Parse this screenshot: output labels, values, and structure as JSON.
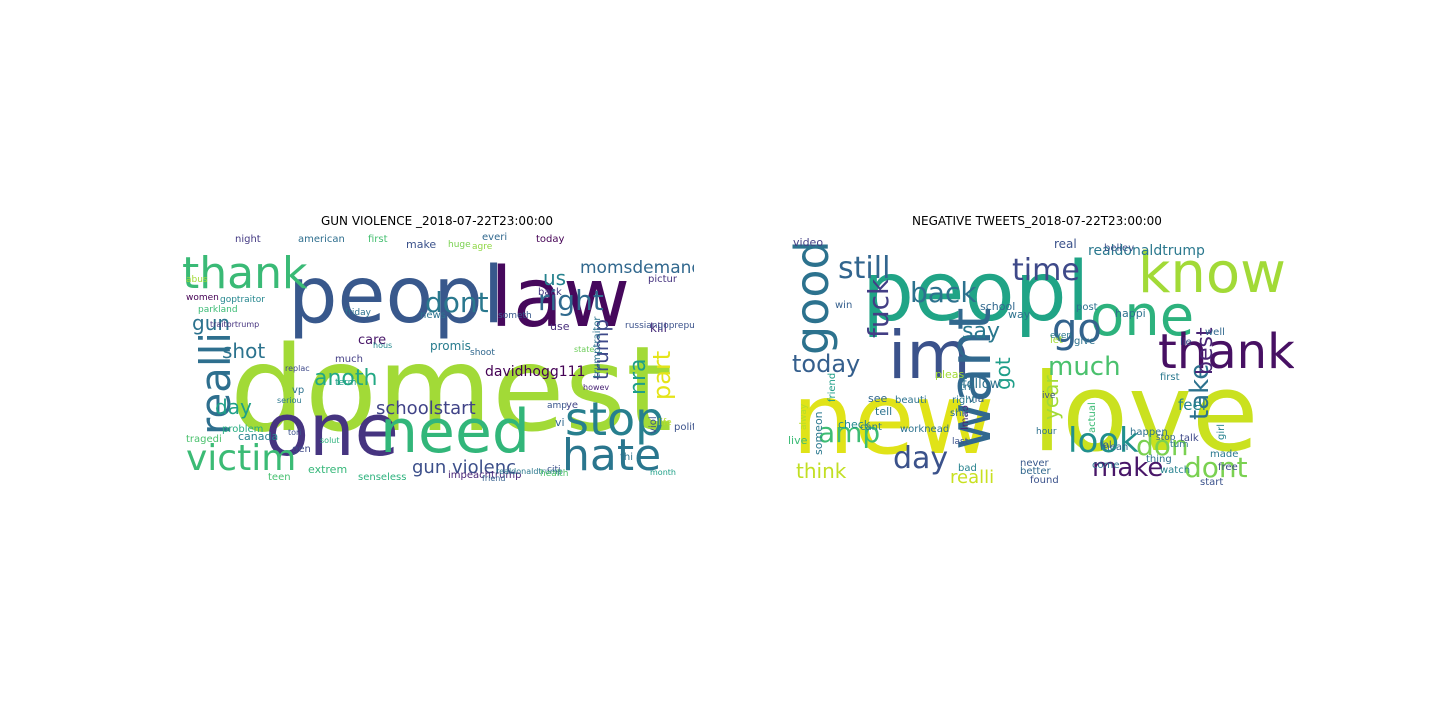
{
  "left_panel": {
    "title": "GUN VIOLENCE _2018-07-22T23:00:00",
    "words": [
      {
        "text": "domest",
        "color": "#a2da37"
      },
      {
        "text": "peopl",
        "color": "#38588c"
      },
      {
        "text": "law",
        "color": "#46085c"
      },
      {
        "text": "thank",
        "color": "#3aba76"
      },
      {
        "text": "one",
        "color": "#463480"
      },
      {
        "text": "need",
        "color": "#32b67a"
      },
      {
        "text": "victim",
        "color": "#3bbb75"
      },
      {
        "text": "realli",
        "color": "#2e6f8e"
      },
      {
        "text": "hate",
        "color": "#2a768e"
      },
      {
        "text": "stop",
        "color": "#277f8e"
      },
      {
        "text": "dont",
        "color": "#2a788e"
      },
      {
        "text": "right",
        "color": "#306a8e"
      },
      {
        "text": "gun violenc",
        "color": "#3c4f8a"
      },
      {
        "text": "schoolstart",
        "color": "#404387"
      },
      {
        "text": "anoth",
        "color": "#22a884"
      },
      {
        "text": "momsdemand",
        "color": "#31688e"
      },
      {
        "text": "davidhogg111",
        "color": "#440154"
      },
      {
        "text": "trump",
        "color": "#3e4989"
      },
      {
        "text": "nra",
        "color": "#1f9e89"
      },
      {
        "text": "us",
        "color": "#26828e"
      },
      {
        "text": "gun",
        "color": "#2c728e"
      },
      {
        "text": "shot",
        "color": "#2c738e"
      },
      {
        "text": "day",
        "color": "#1fa088"
      },
      {
        "text": "part",
        "color": "#e5e419"
      },
      {
        "text": "kill",
        "color": "#472c7a"
      },
      {
        "text": "care",
        "color": "#481769"
      },
      {
        "text": "promis",
        "color": "#287c8e"
      },
      {
        "text": "tragedi",
        "color": "#4ac16d"
      },
      {
        "text": "canada",
        "color": "#26828e"
      },
      {
        "text": "extrem",
        "color": "#35b779"
      },
      {
        "text": "teen",
        "color": "#46c06f"
      },
      {
        "text": "senseless",
        "color": "#2db27d"
      },
      {
        "text": "impeachtrump",
        "color": "#482576"
      },
      {
        "text": "friend",
        "color": "#355f8d"
      },
      {
        "text": "night",
        "color": "#443a83"
      },
      {
        "text": "american",
        "color": "#2e6e8e"
      },
      {
        "text": "first",
        "color": "#44bf70"
      },
      {
        "text": "make",
        "color": "#3b528b"
      },
      {
        "text": "huge",
        "color": "#7ad151"
      },
      {
        "text": "agre",
        "color": "#8fd744"
      },
      {
        "text": "everi",
        "color": "#31688e"
      },
      {
        "text": "use",
        "color": "#472d7b"
      },
      {
        "text": "goptraitor",
        "color": "#24868e"
      },
      {
        "text": "parkland",
        "color": "#3bbb75"
      },
      {
        "text": "traitortrump",
        "color": "#46337f"
      },
      {
        "text": "problem",
        "color": "#27ad81"
      },
      {
        "text": "much",
        "color": "#433e85"
      },
      {
        "text": "term",
        "color": "#1f9f88"
      },
      {
        "text": "vp",
        "color": "#2c718e"
      },
      {
        "text": "hous",
        "color": "#23898e"
      },
      {
        "text": "replac",
        "color": "#3e4989"
      },
      {
        "text": "tori",
        "color": "#3b528b"
      },
      {
        "text": "solut",
        "color": "#2db27d"
      },
      {
        "text": "friday",
        "color": "#2c718e"
      },
      {
        "text": "today",
        "color": "#440154"
      },
      {
        "text": "back",
        "color": "#443a83"
      },
      {
        "text": "amp",
        "color": "#39558c"
      },
      {
        "text": "life",
        "color": "#b5de2b"
      },
      {
        "text": "month",
        "color": "#1fa088"
      },
      {
        "text": "citi",
        "color": "#3b528b"
      },
      {
        "text": "thi",
        "color": "#2c728e"
      },
      {
        "text": "realdonaldtrump",
        "color": "#2a788e"
      },
      {
        "text": "health",
        "color": "#4ec36b"
      },
      {
        "text": "viol",
        "color": "#3b528b"
      },
      {
        "text": "vi",
        "color": "#31688e"
      },
      {
        "text": "ye",
        "color": "#414487"
      },
      {
        "text": "polit",
        "color": "#3b528b"
      },
      {
        "text": "pictur",
        "color": "#46337f"
      },
      {
        "text": "russiangoprepublician",
        "color": "#3b528b"
      },
      {
        "text": "news",
        "color": "#2c728e"
      },
      {
        "text": "someth",
        "color": "#38588c"
      },
      {
        "text": "howev",
        "color": "#482475"
      },
      {
        "text": "state",
        "color": "#6ccd5a"
      },
      {
        "text": "shoot",
        "color": "#31688e"
      },
      {
        "text": "trumptraitor",
        "color": "#2c728e"
      },
      {
        "text": "seriou",
        "color": "#2a788e"
      },
      {
        "text": "abus",
        "color": "#a2da37"
      },
      {
        "text": "women",
        "color": "#440154"
      },
      {
        "text": "gen",
        "color": "#3e4989"
      }
    ]
  },
  "right_panel": {
    "title": "NEGATIVE TWEETS_2018-07-22T23:00:00",
    "words": [
      {
        "text": "peopl",
        "color": "#20a486"
      },
      {
        "text": "love",
        "color": "#cae11f"
      },
      {
        "text": "new",
        "color": "#e0e318"
      },
      {
        "text": "know",
        "color": "#a2da37"
      },
      {
        "text": "im",
        "color": "#3b528b"
      },
      {
        "text": "one",
        "color": "#2db27d"
      },
      {
        "text": "thank",
        "color": "#471063"
      },
      {
        "text": "want",
        "color": "#31688e"
      },
      {
        "text": "good",
        "color": "#2c728e"
      },
      {
        "text": "go",
        "color": "#33638d"
      },
      {
        "text": "back",
        "color": "#2c728e"
      },
      {
        "text": "time",
        "color": "#3e4989"
      },
      {
        "text": "still",
        "color": "#32658e"
      },
      {
        "text": "fuck",
        "color": "#433e85"
      },
      {
        "text": "amp",
        "color": "#3dbc74"
      },
      {
        "text": "day",
        "color": "#3b528b"
      },
      {
        "text": "today",
        "color": "#355f8d"
      },
      {
        "text": "say",
        "color": "#2a788e"
      },
      {
        "text": "much",
        "color": "#4ac16d"
      },
      {
        "text": "look",
        "color": "#21908d"
      },
      {
        "text": "make",
        "color": "#481668"
      },
      {
        "text": "don",
        "color": "#7ad151"
      },
      {
        "text": "dont",
        "color": "#7ad151"
      },
      {
        "text": "take",
        "color": "#2c728e"
      },
      {
        "text": "best",
        "color": "#482475"
      },
      {
        "text": "got",
        "color": "#1f9e89"
      },
      {
        "text": "year",
        "color": "#a2da37"
      },
      {
        "text": "think",
        "color": "#c2df23"
      },
      {
        "text": "realli",
        "color": "#c8e020"
      },
      {
        "text": "realdonaldtrump",
        "color": "#2a788e"
      },
      {
        "text": "feel",
        "color": "#26828e"
      },
      {
        "text": "follow",
        "color": "#2c728e"
      },
      {
        "text": "video",
        "color": "#433e85"
      },
      {
        "text": "someon",
        "color": "#2a788e"
      },
      {
        "text": "friend",
        "color": "#1f9e89"
      },
      {
        "text": "live",
        "color": "#3bbb75"
      },
      {
        "text": "check",
        "color": "#23898e"
      },
      {
        "text": "cant",
        "color": "#2a788e"
      },
      {
        "text": "worknead",
        "color": "#2c728e"
      },
      {
        "text": "lmao",
        "color": "#482475"
      },
      {
        "text": "bad",
        "color": "#26828e"
      },
      {
        "text": "never",
        "color": "#38588c"
      },
      {
        "text": "better",
        "color": "#31688e"
      },
      {
        "text": "found",
        "color": "#3b528b"
      },
      {
        "text": "watch",
        "color": "#26828e"
      },
      {
        "text": "talk",
        "color": "#3e4989"
      },
      {
        "text": "happen",
        "color": "#2c718e"
      },
      {
        "text": "lol",
        "color": "#355f8d"
      },
      {
        "text": "come",
        "color": "#2c728e"
      },
      {
        "text": "mean",
        "color": "#31688e"
      },
      {
        "text": "actual",
        "color": "#3bbb75"
      },
      {
        "text": "thing",
        "color": "#2c718e"
      },
      {
        "text": "made",
        "color": "#2a788e"
      },
      {
        "text": "girl",
        "color": "#26828e"
      },
      {
        "text": "free",
        "color": "#3e4989"
      },
      {
        "text": "start",
        "color": "#3b528b"
      },
      {
        "text": "see",
        "color": "#31688e"
      },
      {
        "text": "tell",
        "color": "#2c728e"
      },
      {
        "text": "shit",
        "color": "#2c718e"
      },
      {
        "text": "via",
        "color": "#355f8d"
      },
      {
        "text": "pleas",
        "color": "#a2da37"
      },
      {
        "text": "tri",
        "color": "#2c728e"
      },
      {
        "text": "right",
        "color": "#2a788e"
      },
      {
        "text": "way",
        "color": "#2c728e"
      },
      {
        "text": "real",
        "color": "#3b528b"
      },
      {
        "text": "happi",
        "color": "#2c718e"
      },
      {
        "text": "well",
        "color": "#31688e"
      },
      {
        "text": "believ",
        "color": "#3b528b"
      },
      {
        "text": "give",
        "color": "#2c728e"
      },
      {
        "text": "post",
        "color": "#2c718e"
      },
      {
        "text": "school",
        "color": "#31688e"
      },
      {
        "text": "let",
        "color": "#a2da37"
      },
      {
        "text": "even",
        "color": "#2a788e"
      },
      {
        "text": "lie",
        "color": "#3b528b"
      },
      {
        "text": "win",
        "color": "#355f8d"
      },
      {
        "text": "beauti",
        "color": "#2c728e"
      },
      {
        "text": "ive",
        "color": "#3b528b"
      },
      {
        "text": "stop",
        "color": "#31688e"
      },
      {
        "text": "turn",
        "color": "#2c728e"
      },
      {
        "text": "last",
        "color": "#3b528b"
      },
      {
        "text": "hour",
        "color": "#2c718e"
      },
      {
        "text": "first",
        "color": "#2a788e"
      },
      {
        "text": "alway",
        "color": "#b5de2b"
      }
    ]
  }
}
